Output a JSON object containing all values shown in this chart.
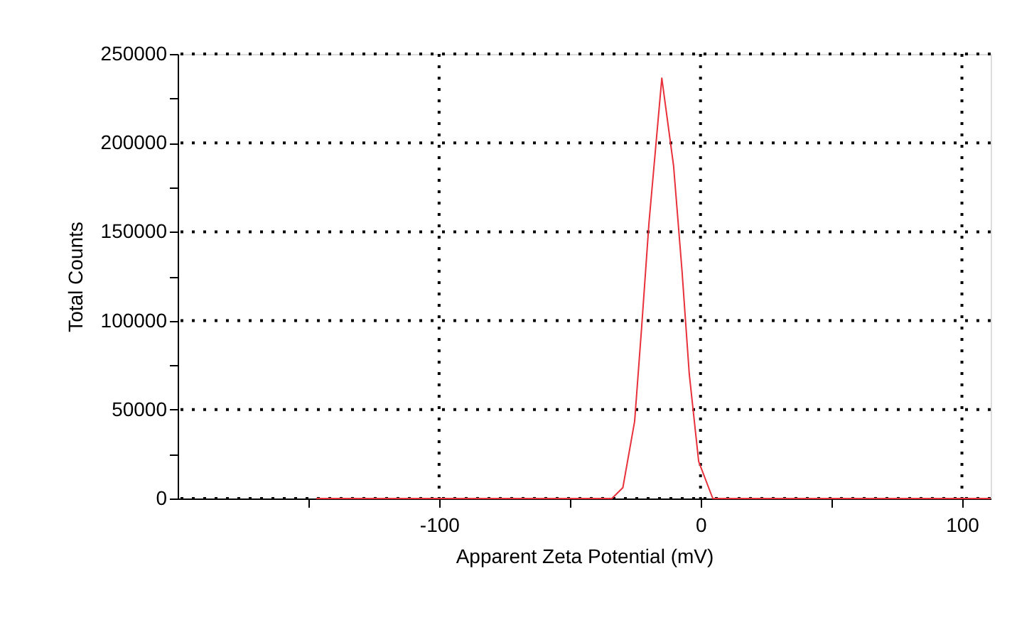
{
  "chart_data": {
    "type": "line",
    "xlabel": "Apparent Zeta Potential (mV)",
    "ylabel": "Total Counts",
    "x": [
      -147,
      -33.9,
      -29.7,
      -25.2,
      -22.5,
      -19.7,
      -14.8,
      -10.3,
      -7.1,
      -4.3,
      -0.7,
      4.7,
      111
    ],
    "series": [
      {
        "color": "#e8313a",
        "values": [
          0,
          0,
          6100,
          43400,
          96600,
          155200,
          236400,
          187100,
          128600,
          70000,
          20800,
          0,
          0
        ]
      }
    ],
    "xlim": [
      -200,
      111
    ],
    "xticks": [
      {
        "value": -150,
        "label": null
      },
      -100,
      {
        "value": -50,
        "label": null
      },
      0,
      {
        "value": 50,
        "label": null
      },
      100
    ],
    "ylim": [
      0,
      250000
    ],
    "yticks": [
      0,
      {
        "value": 25000,
        "label": null
      },
      50000,
      {
        "value": 75000,
        "label": null
      },
      100000,
      {
        "value": 125000,
        "label": null
      },
      150000,
      {
        "value": 175000,
        "label": null
      },
      200000,
      {
        "value": 225000,
        "label": null
      },
      250000
    ],
    "grid": true,
    "line_style": "solid",
    "marker": "none",
    "legend": false
  }
}
